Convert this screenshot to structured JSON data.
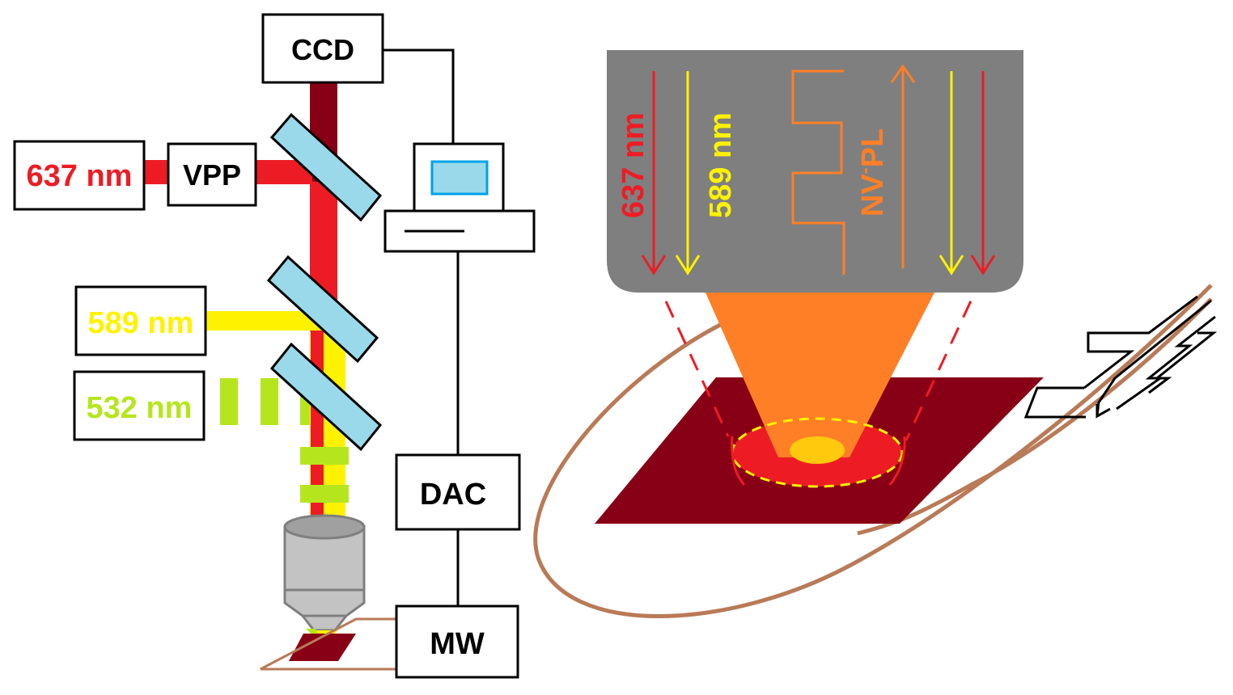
{
  "labels": {
    "ccd": "CCD",
    "vpp": "VPP",
    "laser_637": "637 nm",
    "laser_589": "589 nm",
    "laser_532": "532 nm",
    "dac": "DAC",
    "mw": "MW",
    "beam_637": "637 nm",
    "beam_589": "589 nm",
    "pl_nv": "NV",
    "pl_superscript": "-",
    "pl_suffix": "PL"
  },
  "colors": {
    "red_laser": "#ed1c24",
    "yellow_laser": "#fff200",
    "green_laser": "#b5e61d",
    "dark_red": "#880015",
    "pl_orange": "#ff7f27",
    "mirror_blue": "#99d9ea",
    "screen_blue": "#00a2e8",
    "objective_gray": "#c3c3c3",
    "objective_dark": "#7f7f7f",
    "wire_brown": "#b97a57"
  }
}
